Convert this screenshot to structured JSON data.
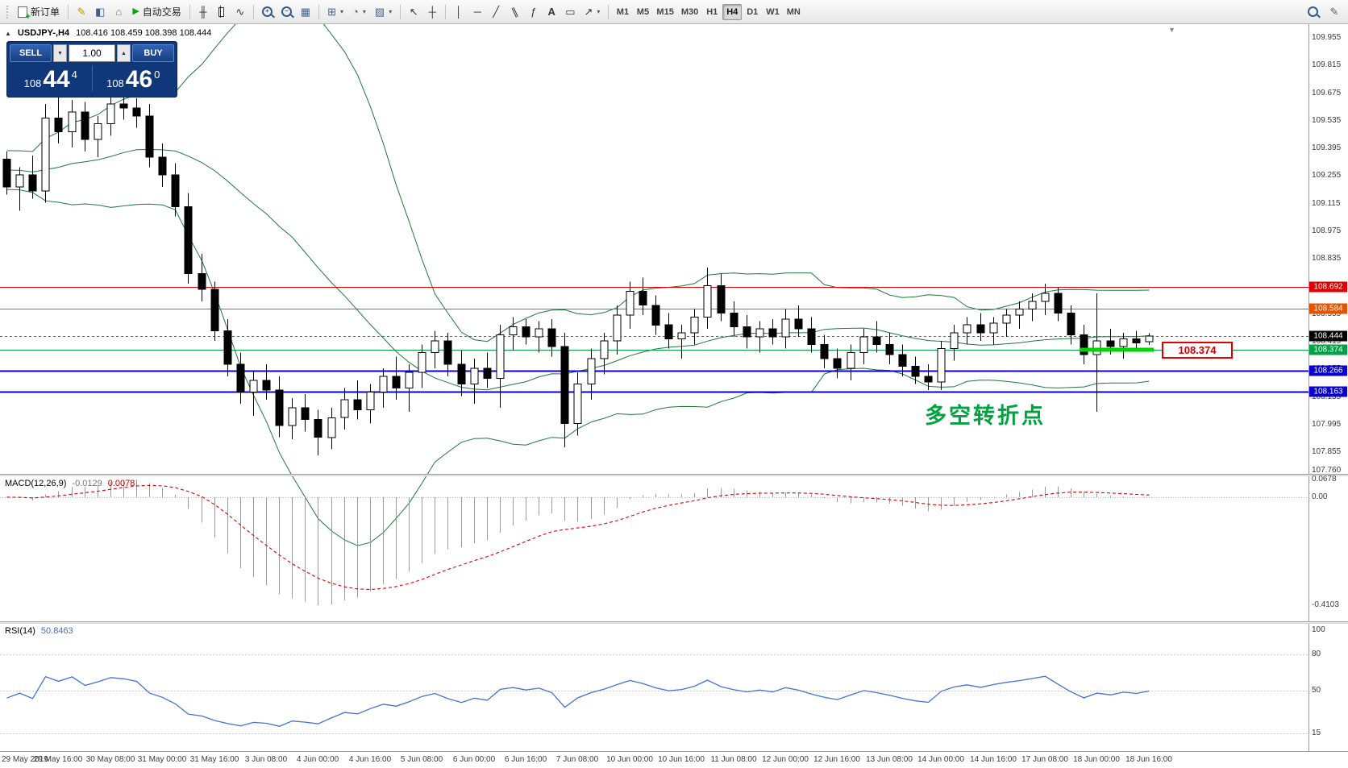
{
  "toolbar": {
    "new_order_label": "新订单",
    "autotrading_label": "自动交易",
    "timeframes": [
      "M1",
      "M5",
      "M15",
      "M30",
      "H1",
      "H4",
      "D1",
      "W1",
      "MN"
    ],
    "active_timeframe": "H4",
    "icons": [
      "new-order",
      "metaeditor",
      "market-watch",
      "navigator",
      "autotrading",
      "bar-chart",
      "candlestick-chart",
      "line-chart",
      "zoom-in",
      "zoom-out",
      "tile-windows",
      "new-chart",
      "period",
      "template",
      "cursor",
      "crosshair",
      "vertical-line",
      "horizontal-line",
      "trendline",
      "channel",
      "fibonacci",
      "text",
      "label",
      "arrows",
      "search",
      "edit"
    ]
  },
  "symbol_info": {
    "symbol": "USDJPY-,H4",
    "ohlc": "108.416 108.459 108.398 108.444"
  },
  "trade_panel": {
    "sell_label": "SELL",
    "buy_label": "BUY",
    "volume": "1.00",
    "sell_prefix": "108",
    "sell_big": "44",
    "sell_sup": "4",
    "buy_prefix": "108",
    "buy_big": "46",
    "buy_sup": "0"
  },
  "annotation": {
    "text": "多空转折点",
    "color": "#00a43f"
  },
  "price_tag": {
    "text": "108.374"
  },
  "highlight_segment": {
    "price": 108.374,
    "color": "#00d500"
  },
  "current_price": {
    "value": 108.444,
    "label": "108.444",
    "box_color": "#000000"
  },
  "hlines": [
    {
      "price": 108.692,
      "color": "#e00000",
      "width": 1.2,
      "label": "108.692"
    },
    {
      "price": 108.584,
      "color": "#e55300",
      "width": 1.2,
      "label": "108.584"
    },
    {
      "price": 108.374,
      "color": "#00a044",
      "width": 1.2,
      "label": "108.374"
    },
    {
      "price": 108.266,
      "color": "#0a00d0",
      "width": 1.6,
      "label": "108.266"
    },
    {
      "price": 108.163,
      "color": "#0a00d0",
      "width": 1.6,
      "label": "108.163"
    }
  ],
  "price_axis": {
    "max": 110.025,
    "min": 107.745,
    "labels": [
      "109.955",
      "109.815",
      "109.675",
      "109.535",
      "109.395",
      "109.255",
      "109.115",
      "108.975",
      "108.835",
      "108.695",
      "108.555",
      "108.415",
      "108.275",
      "108.135",
      "107.995",
      "107.855",
      "107.760"
    ]
  },
  "macd": {
    "title": "MACD(12,26,9)",
    "value1": "-0.0129",
    "value2": "0.0078",
    "axis": [
      "0.0678",
      "0.00",
      "-0.4103"
    ]
  },
  "rsi": {
    "title": "RSI(14)",
    "value": "50.8463",
    "axis": [
      "100",
      "80",
      "50",
      "15"
    ],
    "levels": [
      80,
      50,
      15
    ]
  },
  "time_axis": {
    "labels": [
      "29 May 2019",
      "29 May 16:00",
      "30 May 08:00",
      "31 May 00:00",
      "31 May 16:00",
      "3 Jun 08:00",
      "4 Jun 00:00",
      "4 Jun 16:00",
      "5 Jun 08:00",
      "6 Jun 00:00",
      "6 Jun 16:00",
      "7 Jun 08:00",
      "10 Jun 00:00",
      "10 Jun 16:00",
      "11 Jun 08:00",
      "12 Jun 00:00",
      "12 Jun 16:00",
      "13 Jun 08:00",
      "14 Jun 00:00",
      "14 Jun 16:00",
      "17 Jun 08:00",
      "18 Jun 00:00",
      "18 Jun 16:00"
    ]
  },
  "chart_data": {
    "type": "candlestick-ohlc",
    "symbol": "USDJPY",
    "timeframe": "H4",
    "visible_start": 35,
    "indicators": {
      "bollinger": {
        "period": 20,
        "deviation": 2,
        "color": "#1c7a3a"
      },
      "macd": {
        "fast": 12,
        "slow": 26,
        "signal": 9
      },
      "rsi": {
        "period": 14,
        "color": "#4472d8"
      }
    },
    "candles": [
      [
        109.25,
        109.38,
        109.15,
        109.32
      ],
      [
        109.32,
        109.42,
        109.22,
        109.28
      ],
      [
        109.28,
        109.36,
        109.16,
        109.22
      ],
      [
        109.22,
        109.33,
        109.12,
        109.29
      ],
      [
        109.29,
        109.4,
        109.2,
        109.36
      ],
      [
        109.36,
        109.44,
        109.26,
        109.31
      ],
      [
        109.31,
        109.38,
        109.18,
        109.24
      ],
      [
        109.24,
        109.34,
        109.14,
        109.3
      ],
      [
        109.3,
        109.41,
        109.21,
        109.37
      ],
      [
        109.37,
        109.45,
        109.27,
        109.33
      ],
      [
        109.33,
        109.4,
        109.2,
        109.26
      ],
      [
        109.26,
        109.35,
        109.15,
        109.22
      ],
      [
        109.22,
        109.32,
        109.12,
        109.28
      ],
      [
        109.28,
        109.38,
        109.18,
        109.34
      ],
      [
        109.34,
        109.43,
        109.24,
        109.3
      ],
      [
        109.3,
        109.37,
        109.17,
        109.23
      ],
      [
        109.23,
        109.33,
        109.13,
        109.29
      ],
      [
        109.29,
        109.39,
        109.19,
        109.35
      ],
      [
        109.35,
        109.44,
        109.25,
        109.31
      ],
      [
        109.31,
        109.38,
        109.18,
        109.24
      ],
      [
        109.24,
        109.34,
        109.14,
        109.2
      ],
      [
        109.2,
        109.3,
        109.1,
        109.26
      ],
      [
        109.26,
        109.36,
        109.16,
        109.32
      ],
      [
        109.32,
        109.42,
        109.22,
        109.28
      ],
      [
        109.28,
        109.35,
        109.15,
        109.21
      ],
      [
        109.21,
        109.31,
        109.11,
        109.27
      ],
      [
        109.27,
        109.37,
        109.17,
        109.33
      ],
      [
        109.33,
        109.43,
        109.23,
        109.29
      ],
      [
        109.29,
        109.36,
        109.16,
        109.22
      ],
      [
        109.22,
        109.32,
        109.12,
        109.28
      ],
      [
        109.28,
        109.38,
        109.18,
        109.34
      ],
      [
        109.34,
        109.44,
        109.24,
        109.3
      ],
      [
        109.3,
        109.4,
        109.2,
        109.36
      ],
      [
        109.36,
        109.45,
        109.26,
        109.32
      ],
      [
        109.32,
        109.4,
        109.22,
        109.34
      ],
      [
        109.34,
        109.38,
        109.16,
        109.2
      ],
      [
        109.2,
        109.3,
        109.08,
        109.26
      ],
      [
        109.26,
        109.36,
        109.14,
        109.18
      ],
      [
        109.18,
        109.62,
        109.12,
        109.55
      ],
      [
        109.55,
        109.66,
        109.42,
        109.48
      ],
      [
        109.48,
        109.64,
        109.4,
        109.58
      ],
      [
        109.58,
        109.63,
        109.38,
        109.44
      ],
      [
        109.44,
        109.56,
        109.35,
        109.52
      ],
      [
        109.52,
        109.66,
        109.46,
        109.62
      ],
      [
        109.62,
        109.66,
        109.54,
        109.6
      ],
      [
        109.6,
        109.65,
        109.5,
        109.56
      ],
      [
        109.56,
        109.62,
        109.3,
        109.35
      ],
      [
        109.35,
        109.42,
        109.2,
        109.26
      ],
      [
        109.26,
        109.32,
        109.05,
        109.1
      ],
      [
        109.1,
        109.17,
        108.71,
        108.76
      ],
      [
        108.76,
        108.86,
        108.62,
        108.68
      ],
      [
        108.68,
        108.72,
        108.42,
        108.47
      ],
      [
        108.47,
        108.53,
        108.24,
        108.3
      ],
      [
        108.3,
        108.36,
        108.1,
        108.16
      ],
      [
        108.16,
        108.27,
        108.04,
        108.22
      ],
      [
        108.22,
        108.3,
        108.12,
        108.17
      ],
      [
        108.17,
        108.24,
        107.93,
        107.99
      ],
      [
        107.99,
        108.13,
        107.92,
        108.08
      ],
      [
        108.08,
        108.15,
        107.96,
        108.02
      ],
      [
        108.02,
        108.07,
        107.84,
        107.93
      ],
      [
        107.93,
        108.08,
        107.87,
        108.03
      ],
      [
        108.03,
        108.18,
        107.97,
        108.12
      ],
      [
        108.12,
        108.22,
        108.02,
        108.07
      ],
      [
        108.07,
        108.2,
        108.0,
        108.16
      ],
      [
        108.16,
        108.28,
        108.08,
        108.24
      ],
      [
        108.24,
        108.34,
        108.12,
        108.18
      ],
      [
        108.18,
        108.3,
        108.06,
        108.26
      ],
      [
        108.26,
        108.4,
        108.18,
        108.36
      ],
      [
        108.36,
        108.47,
        108.28,
        108.42
      ],
      [
        108.42,
        108.46,
        108.24,
        108.3
      ],
      [
        108.3,
        108.37,
        108.14,
        108.2
      ],
      [
        108.2,
        108.33,
        108.1,
        108.28
      ],
      [
        108.28,
        108.36,
        108.18,
        108.23
      ],
      [
        108.23,
        108.5,
        108.08,
        108.45
      ],
      [
        108.45,
        108.54,
        108.37,
        108.49
      ],
      [
        108.49,
        108.53,
        108.4,
        108.44
      ],
      [
        108.44,
        108.52,
        108.36,
        108.48
      ],
      [
        108.48,
        108.53,
        108.34,
        108.39
      ],
      [
        108.39,
        108.46,
        107.88,
        108.0
      ],
      [
        108.0,
        108.26,
        107.94,
        108.2
      ],
      [
        108.2,
        108.38,
        108.12,
        108.33
      ],
      [
        108.33,
        108.46,
        108.25,
        108.42
      ],
      [
        108.42,
        108.6,
        108.35,
        108.55
      ],
      [
        108.55,
        108.72,
        108.48,
        108.67
      ],
      [
        108.67,
        108.74,
        108.55,
        108.6
      ],
      [
        108.6,
        108.65,
        108.45,
        108.5
      ],
      [
        108.5,
        108.56,
        108.38,
        108.43
      ],
      [
        108.43,
        108.5,
        108.33,
        108.46
      ],
      [
        108.46,
        108.58,
        108.4,
        108.54
      ],
      [
        108.54,
        108.79,
        108.48,
        108.7
      ],
      [
        108.7,
        108.76,
        108.52,
        108.56
      ],
      [
        108.56,
        108.62,
        108.44,
        108.49
      ],
      [
        108.49,
        108.55,
        108.38,
        108.44
      ],
      [
        108.44,
        108.52,
        108.36,
        108.48
      ],
      [
        108.48,
        108.53,
        108.4,
        108.44
      ],
      [
        108.44,
        108.58,
        108.38,
        108.53
      ],
      [
        108.53,
        108.6,
        108.44,
        108.48
      ],
      [
        108.48,
        108.54,
        108.36,
        108.4
      ],
      [
        108.4,
        108.45,
        108.28,
        108.33
      ],
      [
        108.33,
        108.38,
        108.23,
        108.28
      ],
      [
        108.28,
        108.4,
        108.22,
        108.36
      ],
      [
        108.36,
        108.48,
        108.3,
        108.44
      ],
      [
        108.44,
        108.52,
        108.36,
        108.4
      ],
      [
        108.4,
        108.46,
        108.3,
        108.35
      ],
      [
        108.35,
        108.4,
        108.24,
        108.29
      ],
      [
        108.29,
        108.34,
        108.2,
        108.24
      ],
      [
        108.24,
        108.3,
        108.17,
        108.21
      ],
      [
        108.21,
        108.42,
        108.17,
        108.38
      ],
      [
        108.38,
        108.5,
        108.32,
        108.46
      ],
      [
        108.46,
        108.54,
        108.4,
        108.5
      ],
      [
        108.5,
        108.56,
        108.42,
        108.46
      ],
      [
        108.46,
        108.54,
        108.4,
        108.51
      ],
      [
        108.51,
        108.58,
        108.44,
        108.55
      ],
      [
        108.55,
        108.62,
        108.48,
        108.58
      ],
      [
        108.58,
        108.66,
        108.52,
        108.62
      ],
      [
        108.62,
        108.71,
        108.55,
        108.66
      ],
      [
        108.66,
        108.69,
        108.52,
        108.56
      ],
      [
        108.56,
        108.6,
        108.4,
        108.45
      ],
      [
        108.45,
        108.5,
        108.3,
        108.35
      ],
      [
        108.35,
        108.66,
        108.06,
        108.42
      ],
      [
        108.42,
        108.48,
        108.35,
        108.39
      ],
      [
        108.39,
        108.46,
        108.33,
        108.43
      ],
      [
        108.43,
        108.47,
        108.37,
        108.41
      ],
      [
        108.416,
        108.459,
        108.398,
        108.444
      ]
    ]
  }
}
